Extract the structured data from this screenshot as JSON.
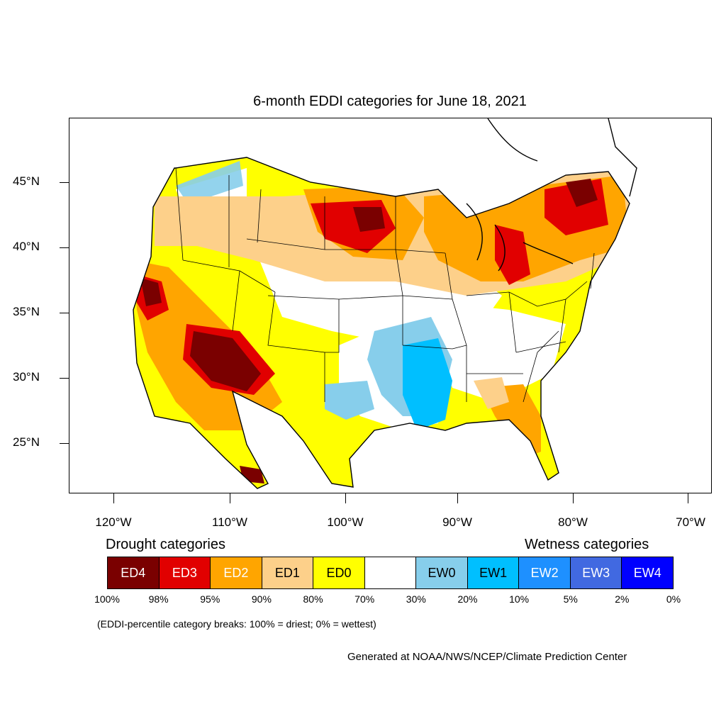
{
  "title": "6-month EDDI categories for June 18, 2021",
  "latitude_labels": [
    "45°N",
    "40°N",
    "35°N",
    "30°N",
    "25°N"
  ],
  "longitude_labels": [
    "120°W",
    "110°W",
    "100°W",
    "90°W",
    "80°W",
    "70°W"
  ],
  "legend": {
    "drought_heading": "Drought categories",
    "wetness_heading": "Wetness categories",
    "categories": [
      {
        "label": "ED4",
        "color": "#7a0000",
        "text_color": "#ffffff"
      },
      {
        "label": "ED3",
        "color": "#e10000",
        "text_color": "#ffffff"
      },
      {
        "label": "ED2",
        "color": "#ffa500",
        "text_color": "#ffffff"
      },
      {
        "label": "ED1",
        "color": "#fdd08a",
        "text_color": "#000000"
      },
      {
        "label": "ED0",
        "color": "#ffff00",
        "text_color": "#000000"
      },
      {
        "label": "",
        "color": "#ffffff",
        "text_color": "#000000"
      },
      {
        "label": "EW0",
        "color": "#87ceeb",
        "text_color": "#000000"
      },
      {
        "label": "EW1",
        "color": "#00bfff",
        "text_color": "#000000"
      },
      {
        "label": "EW2",
        "color": "#1e90ff",
        "text_color": "#ffffff"
      },
      {
        "label": "EW3",
        "color": "#4169e1",
        "text_color": "#ffffff"
      },
      {
        "label": "EW4",
        "color": "#0000ff",
        "text_color": "#ffffff"
      }
    ],
    "percentile_breaks": [
      "100%",
      "98%",
      "95%",
      "90%",
      "80%",
      "70%",
      "30%",
      "20%",
      "10%",
      "5%",
      "2%",
      "0%"
    ]
  },
  "footnote": "(EDDI-percentile category breaks: 100% = driest; 0% = wettest)",
  "credit": "Generated at NOAA/NWS/NCEP/Climate Prediction Center"
}
